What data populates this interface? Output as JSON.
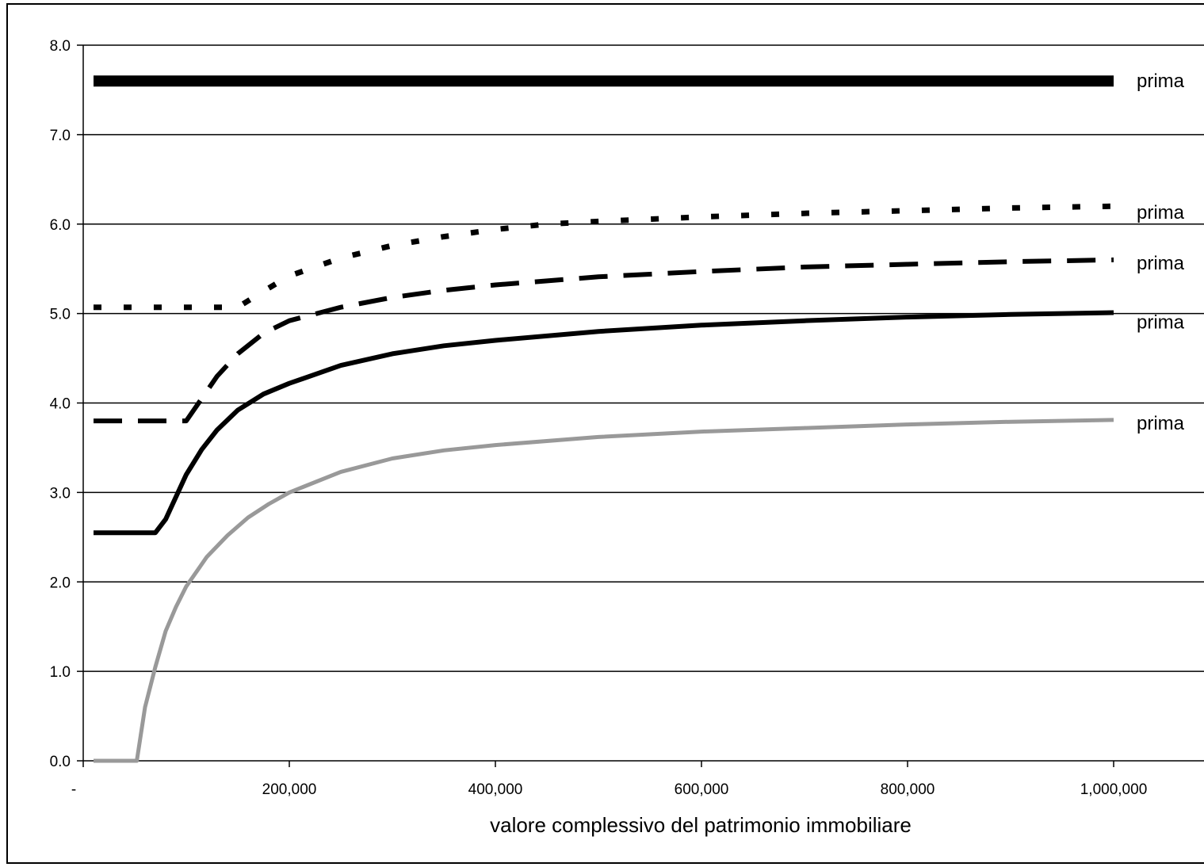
{
  "chart_data": {
    "type": "line",
    "title": "",
    "xlabel": "valore complessivo del patrimonio immobiliare",
    "ylabel": "",
    "xlim": [
      0,
      1000000
    ],
    "ylim": [
      0,
      8
    ],
    "grid": "horizontal",
    "y_ticks": [
      "0.0",
      "1.0",
      "2.0",
      "3.0",
      "4.0",
      "5.0",
      "6.0",
      "7.0",
      "8.0"
    ],
    "x_ticks": [
      {
        "value": 0,
        "label": "-"
      },
      {
        "value": 200000,
        "label": "200,000"
      },
      {
        "value": 400000,
        "label": "400,000"
      },
      {
        "value": 600000,
        "label": "600,000"
      },
      {
        "value": 800000,
        "label": "800,000"
      },
      {
        "value": 1000000,
        "label": "1,000,000"
      }
    ],
    "series": [
      {
        "name": "prima",
        "style": "thick-solid",
        "color": "#000000",
        "x": [
          10000,
          1000000
        ],
        "y": [
          7.6,
          7.6
        ]
      },
      {
        "name": "prima",
        "style": "dotted",
        "color": "#000000",
        "x": [
          10000,
          150000,
          175000,
          200000,
          250000,
          300000,
          350000,
          400000,
          450000,
          500000,
          600000,
          700000,
          800000,
          900000,
          1000000
        ],
        "y": [
          5.07,
          5.07,
          5.25,
          5.42,
          5.62,
          5.76,
          5.86,
          5.94,
          6.0,
          6.03,
          6.08,
          6.12,
          6.15,
          6.18,
          6.2
        ]
      },
      {
        "name": "prima",
        "style": "dashed",
        "color": "#000000",
        "x": [
          10000,
          100000,
          115000,
          130000,
          150000,
          175000,
          200000,
          250000,
          300000,
          350000,
          400000,
          500000,
          600000,
          700000,
          800000,
          900000,
          1000000
        ],
        "y": [
          3.8,
          3.8,
          4.05,
          4.3,
          4.55,
          4.78,
          4.92,
          5.07,
          5.18,
          5.26,
          5.32,
          5.41,
          5.47,
          5.52,
          5.55,
          5.58,
          5.6
        ]
      },
      {
        "name": "prima",
        "style": "solid",
        "color": "#000000",
        "x": [
          10000,
          70000,
          80000,
          90000,
          100000,
          115000,
          130000,
          150000,
          175000,
          200000,
          250000,
          300000,
          350000,
          400000,
          500000,
          600000,
          700000,
          800000,
          900000,
          1000000
        ],
        "y": [
          2.55,
          2.55,
          2.7,
          2.95,
          3.2,
          3.48,
          3.7,
          3.92,
          4.1,
          4.22,
          4.42,
          4.55,
          4.64,
          4.7,
          4.8,
          4.87,
          4.92,
          4.96,
          4.99,
          5.01
        ]
      },
      {
        "name": "prima",
        "style": "gray-solid",
        "color": "#999999",
        "x": [
          10000,
          52000,
          60000,
          70000,
          80000,
          90000,
          100000,
          120000,
          140000,
          160000,
          180000,
          200000,
          250000,
          300000,
          350000,
          400000,
          500000,
          600000,
          700000,
          800000,
          900000,
          1000000
        ],
        "y": [
          0.0,
          0.0,
          0.6,
          1.05,
          1.45,
          1.72,
          1.95,
          2.28,
          2.52,
          2.72,
          2.87,
          3.0,
          3.23,
          3.38,
          3.47,
          3.53,
          3.62,
          3.68,
          3.72,
          3.76,
          3.79,
          3.81
        ]
      }
    ]
  }
}
